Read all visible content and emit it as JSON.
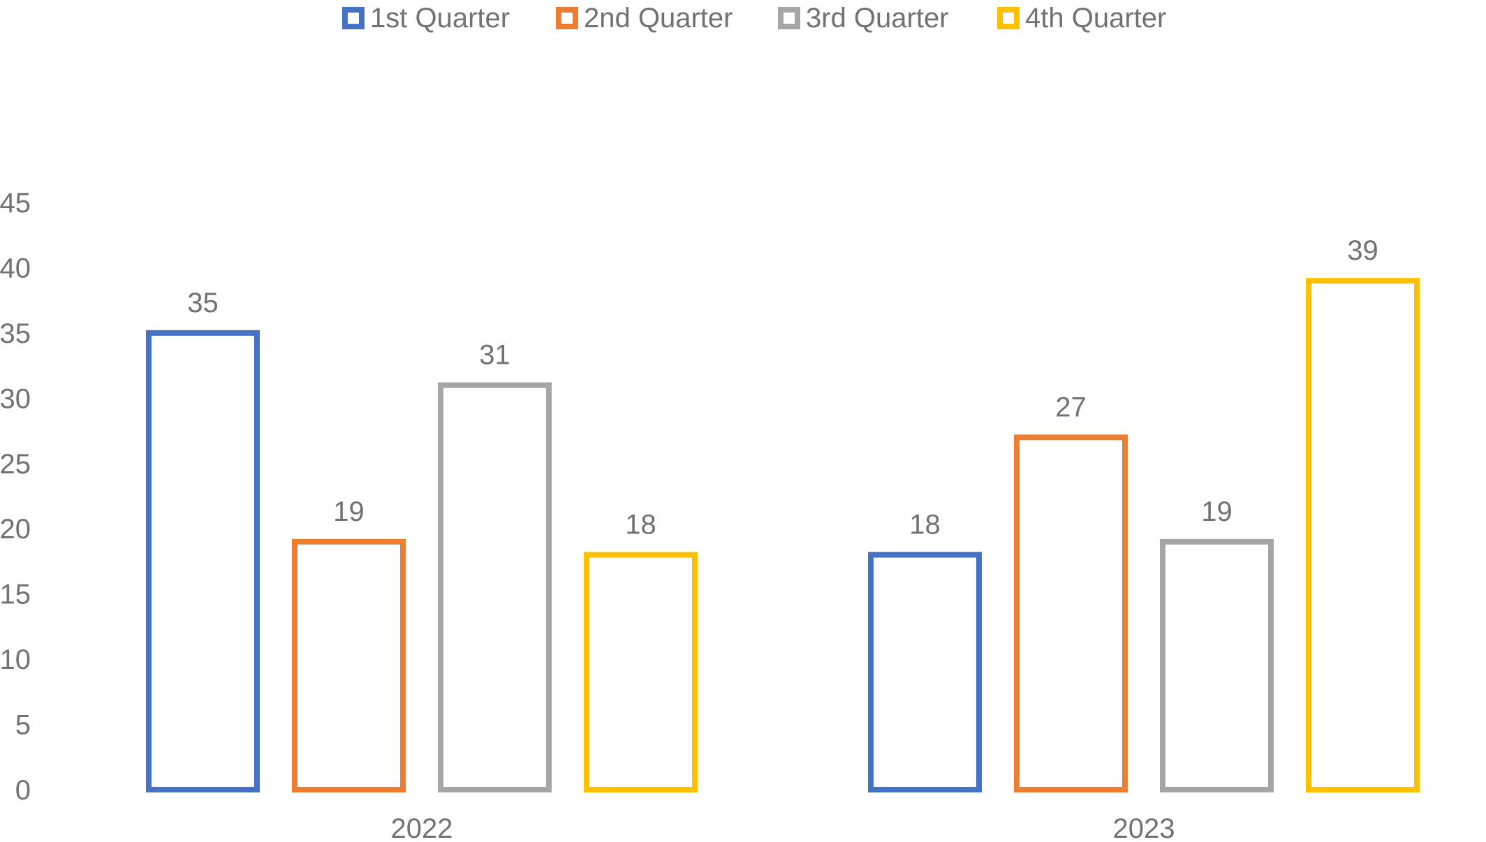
{
  "chart_data": {
    "type": "bar",
    "title": "",
    "xlabel": "",
    "ylabel": "",
    "categories": [
      "2022",
      "2023"
    ],
    "series": [
      {
        "name": "1st Quarter",
        "color": "#4472C4",
        "values": [
          35,
          18
        ]
      },
      {
        "name": "2nd Quarter",
        "color": "#ED7D31",
        "values": [
          19,
          27
        ]
      },
      {
        "name": "3rd Quarter",
        "color": "#A5A5A5",
        "values": [
          31,
          19
        ]
      },
      {
        "name": "4th Quarter",
        "color": "#FFC000",
        "values": [
          18,
          39
        ]
      }
    ],
    "ylim": [
      0,
      45
    ],
    "yticks": [
      0,
      5,
      10,
      15,
      20,
      25,
      30,
      35,
      40,
      45
    ],
    "bar_style": "outline",
    "data_labels": true,
    "legend_position": "top",
    "grid": false,
    "text_color": "#767171"
  }
}
